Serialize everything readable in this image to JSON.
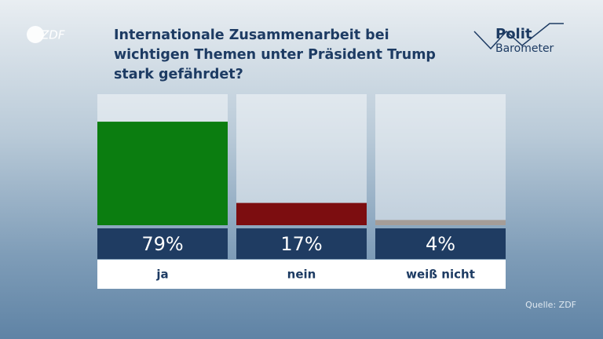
{
  "chart_data": {
    "type": "bar",
    "title": "Internationale Zusammenarbeit bei wichtigen Themen unter Präsident Trump stark gefährdet?",
    "categories": [
      "ja",
      "nein",
      "weiß nicht"
    ],
    "values": [
      79,
      17,
      4
    ],
    "value_labels": [
      "79%",
      "17%",
      "4%"
    ],
    "colors": [
      "#0b7d10",
      "#7c0d10",
      "#a59d98"
    ],
    "ylim": [
      0,
      100
    ],
    "source": "Quelle: ZDF"
  },
  "branding": {
    "broadcaster": "ZDF",
    "show_line1": "Polit",
    "show_line2": "Barometer"
  }
}
